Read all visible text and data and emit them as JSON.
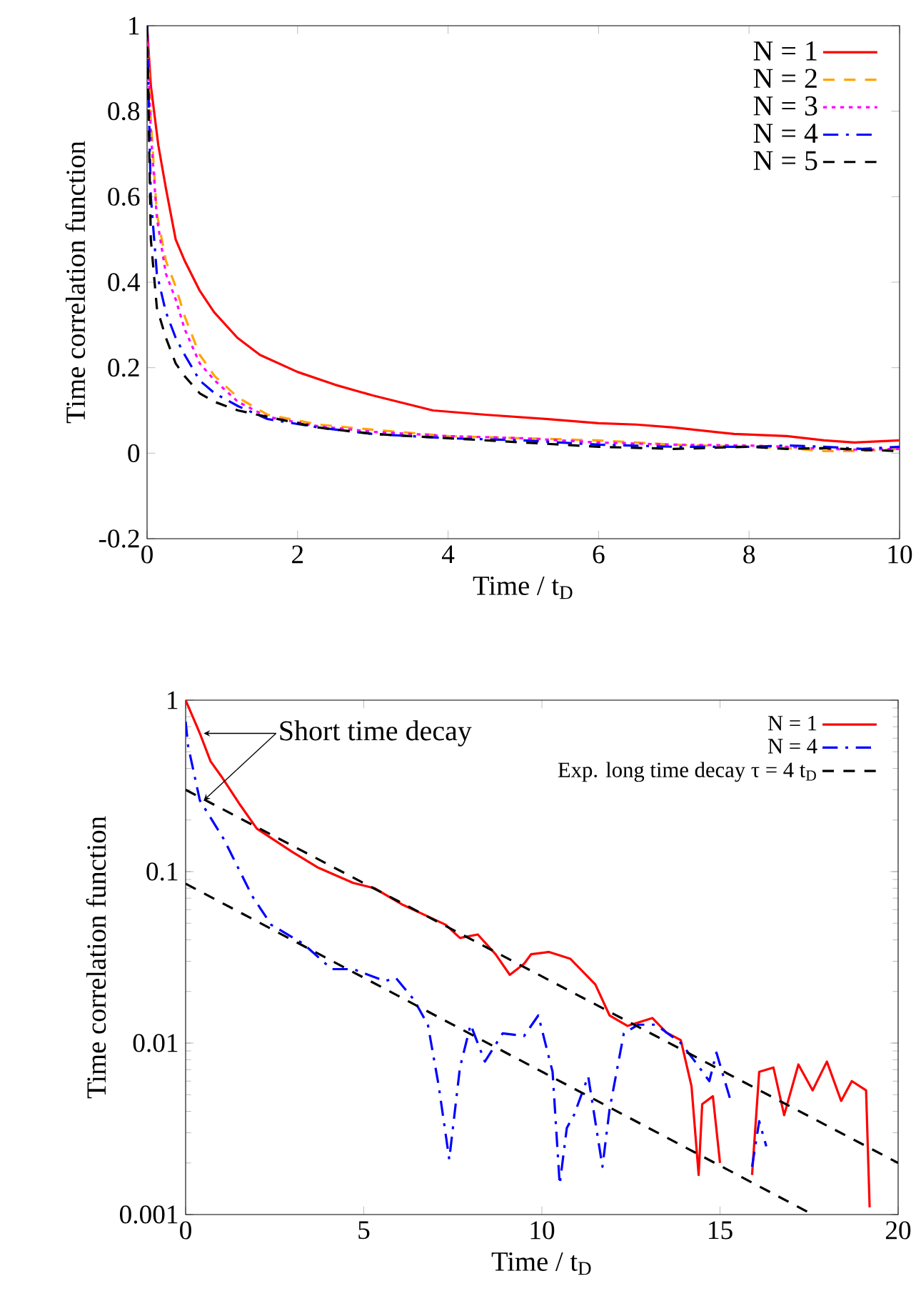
{
  "chart_data": [
    {
      "type": "line",
      "xlabel": "Time / t$_{D}$",
      "ylabel": "Time correlation function",
      "xlim": [
        0,
        10
      ],
      "ylim": [
        -0.2,
        1
      ],
      "xticks": [
        0,
        2,
        4,
        6,
        8,
        10
      ],
      "yticks": [
        -0.2,
        0,
        0.2,
        0.4,
        0.6,
        0.8,
        1
      ],
      "legend": "top right",
      "x": [
        0,
        0.05,
        0.13,
        0.25,
        0.38,
        0.5,
        0.7,
        0.9,
        1.21,
        1.6,
        2.28,
        3,
        4,
        5,
        6,
        7,
        8,
        8.5,
        9,
        9.5,
        10
      ],
      "series": [
        {
          "name": "N = 1",
          "color": "#ff0000",
          "line_style": "solid",
          "x": [
            0,
            0.05,
            0.15,
            0.25,
            0.38,
            0.5,
            0.7,
            0.89,
            1.2,
            1.5,
            2.0,
            2.5,
            3.0,
            3.8,
            4.5,
            5.3,
            6.0,
            6.5,
            7.0,
            7.8,
            8.5,
            9.0,
            9.4,
            10
          ],
          "values": [
            1,
            0.86,
            0.72,
            0.62,
            0.5,
            0.45,
            0.38,
            0.33,
            0.27,
            0.23,
            0.19,
            0.16,
            0.135,
            0.1,
            0.09,
            0.08,
            0.07,
            0.067,
            0.06,
            0.045,
            0.04,
            0.03,
            0.025,
            0.03
          ]
        },
        {
          "name": "N = 2",
          "color": "#ffa500",
          "line_style": "dashed",
          "values": [
            1,
            0.78,
            0.56,
            0.45,
            0.39,
            0.32,
            0.23,
            0.18,
            0.13,
            0.09,
            0.067,
            0.055,
            0.04,
            0.035,
            0.03,
            0.02,
            0.015,
            0.012,
            0.005,
            0.005,
            0.01
          ]
        },
        {
          "name": "N = 3",
          "color": "#ff00ff",
          "line_style": "dotted",
          "values": [
            1,
            0.75,
            0.55,
            0.42,
            0.36,
            0.29,
            0.21,
            0.17,
            0.12,
            0.085,
            0.063,
            0.05,
            0.04,
            0.035,
            0.025,
            0.02,
            0.018,
            0.015,
            0.01,
            0.008,
            0.01
          ]
        },
        {
          "name": "N = 4",
          "color": "#0000ff",
          "line_style": "dashdot",
          "values": [
            1,
            0.6,
            0.42,
            0.33,
            0.27,
            0.23,
            0.17,
            0.14,
            0.11,
            0.08,
            0.06,
            0.045,
            0.035,
            0.03,
            0.02,
            0.015,
            0.015,
            0.018,
            0.015,
            0.01,
            0.015
          ]
        },
        {
          "name": "N = 5",
          "color": "#000000",
          "line_style": "dashed",
          "values": [
            1,
            0.5,
            0.34,
            0.27,
            0.21,
            0.18,
            0.14,
            0.12,
            0.1,
            0.085,
            0.06,
            0.045,
            0.035,
            0.025,
            0.015,
            0.01,
            0.015,
            0.01,
            0.012,
            0.008,
            0.005
          ]
        }
      ]
    },
    {
      "type": "line",
      "xlabel": "Time / t$_{D}$",
      "ylabel": "Time correlation function",
      "xlim": [
        0,
        20
      ],
      "ylim": [
        0.001,
        1
      ],
      "xticks": [
        0,
        5,
        10,
        15,
        20
      ],
      "yticks": [
        0.001,
        0.01,
        0.1,
        1
      ],
      "log": "y",
      "legend": "top right",
      "annotations": [
        {
          "text": "Short time decay",
          "x": 0.4,
          "y": 0.64
        }
      ],
      "series": [
        {
          "name": "N = 1",
          "color": "#ff0000",
          "line_style": "solid",
          "x": [
            0,
            0.4,
            0.7,
            1.0,
            1.5,
            2.0,
            3.0,
            3.7,
            4.7,
            5.3,
            6.1,
            7.3,
            7.7,
            8.2,
            8.7,
            9.1,
            9.5,
            9.7,
            10.2,
            10.8,
            11.5,
            11.9,
            12.4,
            13.1,
            13.5,
            13.9,
            14.2,
            14.4,
            14.5,
            14.8,
            15.0,
            15.1,
            15.8,
            15.9,
            16.1,
            16.5,
            16.8,
            17.2,
            17.6,
            18.0,
            18.4,
            18.7,
            19.1,
            19.2
          ],
          "values": [
            1,
            0.64,
            0.44,
            0.36,
            0.25,
            0.178,
            0.13,
            0.106,
            0.086,
            0.08,
            0.064,
            0.049,
            0.041,
            0.043,
            0.033,
            0.025,
            0.029,
            0.033,
            0.034,
            0.031,
            0.022,
            0.0145,
            0.0126,
            0.014,
            0.0115,
            0.0104,
            0.0056,
            0.0017,
            0.0044,
            0.0049,
            0.002,
            null,
            null,
            0.0017,
            0.0068,
            0.0072,
            0.0038,
            0.0075,
            0.0053,
            0.0078,
            0.0046,
            0.006,
            0.0053,
            0.0011
          ]
        },
        {
          "name": "N = 4",
          "color": "#0000ff",
          "line_style": "dashdot",
          "x": [
            0,
            0.07,
            0.4,
            1.07,
            1.87,
            2.4,
            3.3,
            4.1,
            4.7,
            5.6,
            5.9,
            6.4,
            6.8,
            7.1,
            7.4,
            7.7,
            8.0,
            8.4,
            8.9,
            9.5,
            9.9,
            10.3,
            10.5,
            10.7,
            10.9,
            11.3,
            11.7,
            11.9,
            12.3,
            12.7,
            13.2,
            13.9,
            14.3,
            14.7,
            14.9,
            15.3,
            15.5,
            15.8,
            15.9,
            16.1,
            16.3
          ],
          "values": [
            0.75,
            0.54,
            0.26,
            0.155,
            0.072,
            0.049,
            0.038,
            0.027,
            0.027,
            0.023,
            0.024,
            0.018,
            0.0128,
            0.0057,
            0.0021,
            0.0072,
            0.0128,
            0.0078,
            0.0114,
            0.011,
            0.0145,
            0.0068,
            0.0015,
            0.0032,
            0.0038,
            0.0064,
            0.0019,
            0.0041,
            0.0114,
            0.0128,
            0.0128,
            0.01,
            0.0078,
            0.006,
            0.0088,
            0.0046,
            null,
            null,
            0.0019,
            0.0035,
            0.0025
          ]
        },
        {
          "name": "Exp. long time decay τ = 4 t$_{D}$",
          "color": "#000000",
          "line_style": "dashed",
          "x": [
            0,
            20
          ],
          "values": [
            0.3,
            0.002
          ]
        },
        {
          "color": "#000000",
          "line_style": "dashed",
          "x": [
            0,
            17.6
          ],
          "values": [
            0.085,
            0.001
          ]
        }
      ]
    }
  ]
}
